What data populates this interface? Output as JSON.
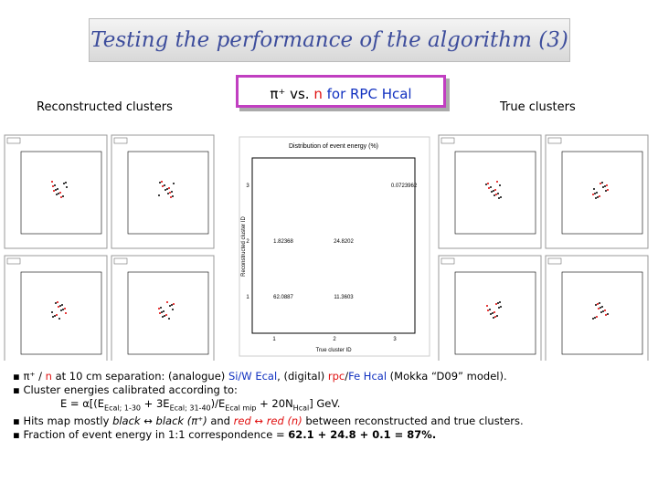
{
  "header": {
    "title": "Testing the performance of the algorithm (3)",
    "left_label": "Reconstructed clusters",
    "center_label": [
      "π⁺ vs. ",
      "n",
      " for RPC Hcal"
    ],
    "right_label": "True clusters"
  },
  "histogram": {
    "title": "Distribution of event energy (%)",
    "y_label": "Reconstructed cluster ID",
    "x_label": "True cluster ID",
    "x_ticks": [
      "1",
      "2",
      "3"
    ],
    "y_ticks": [
      "1",
      "2",
      "3"
    ],
    "cells": [
      [
        "62.0887",
        "11.3603",
        null
      ],
      [
        "1.82368",
        "24.8202",
        null
      ],
      [
        null,
        null,
        "0.0723962"
      ]
    ]
  },
  "bullets": [
    [
      "π⁺ / ",
      "n",
      " at 10 cm separation: (analogue) ",
      "Si/W Ecal",
      ", (digital) ",
      "rpc",
      "/",
      "Fe Hcal",
      " (Mokka “D09” model)."
    ],
    [
      "Cluster energies calibrated according to:"
    ],
    [
      "E = α[(E",
      "Ecal; 1-30",
      " + 3E",
      "Ecal; 31-40",
      ")/E",
      "Ecal mip",
      " + 20N",
      "Hcal",
      "] GeV."
    ],
    [
      "Hits map mostly ",
      "black ↔ black (π⁺)",
      " and ",
      "red ↔ red (n)",
      " between reconstructed and true clusters."
    ],
    [
      "Fraction of event energy in 1:1 correspondence = ",
      "62.1 + 24.8 + 0.1 = 87%."
    ]
  ]
}
